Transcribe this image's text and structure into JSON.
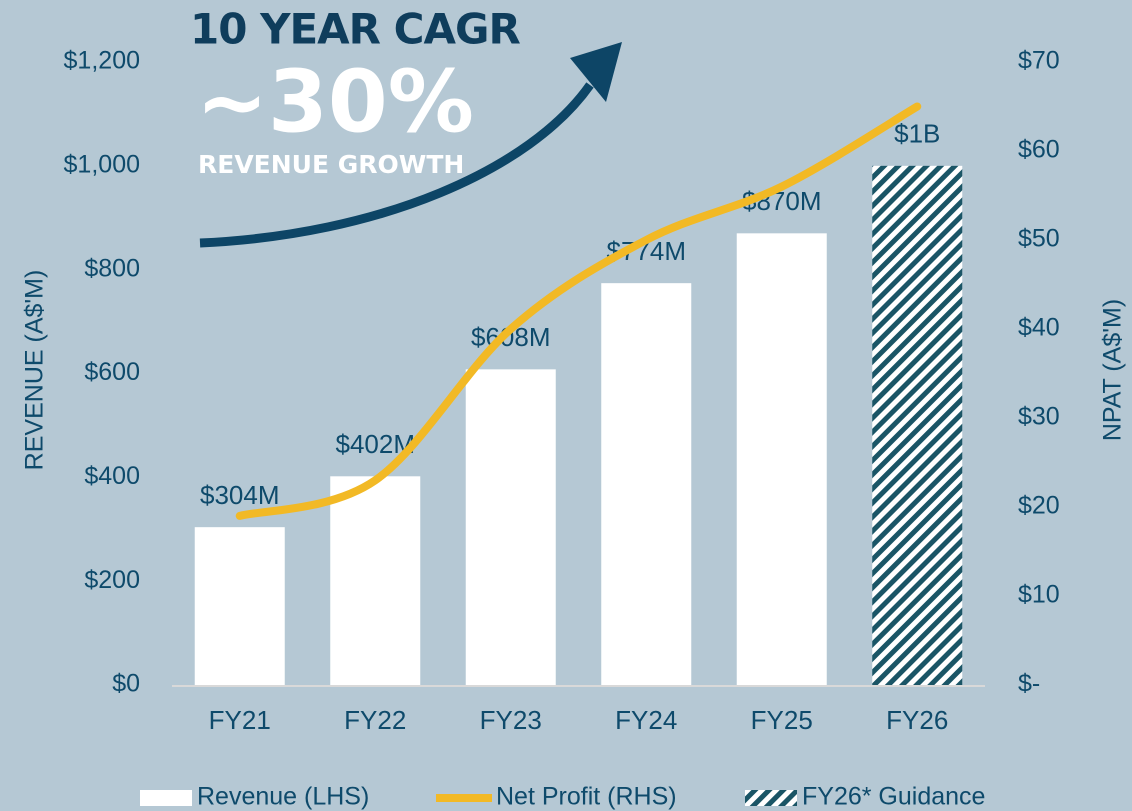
{
  "chart_data": {
    "type": "bar",
    "annotations": [
      "10 YEAR CAGR",
      "~30%",
      "REVENUE GROWTH"
    ],
    "ylabel": "REVENUE (A$'M)",
    "y2label": "NPAT (A$'M)",
    "categories": [
      "FY21",
      "FY22",
      "FY23",
      "FY24",
      "FY25",
      "FY26"
    ],
    "series": [
      {
        "name": "Revenue (LHS)",
        "type": "bar",
        "color": "#ffffff",
        "values": [
          304,
          402,
          608,
          774,
          870,
          null
        ],
        "value_labels": [
          "$304M",
          "$402M",
          "$608M",
          "$774M",
          "$870M",
          null
        ]
      },
      {
        "name": "Net Profit (RHS)",
        "type": "line",
        "axis": "y2",
        "color": "#f2b925",
        "values": [
          19,
          23,
          40,
          50,
          56,
          65
        ]
      },
      {
        "name": "FY26* Guidance",
        "type": "bar",
        "pattern": "hatch",
        "color": "#1a5566",
        "values": [
          null,
          null,
          null,
          null,
          null,
          1000
        ],
        "value_labels": [
          null,
          null,
          null,
          null,
          null,
          "$1B"
        ]
      }
    ],
    "ylim": [
      0,
      1200
    ],
    "yticks": [
      {
        "value": 0,
        "label": "$0"
      },
      {
        "value": 200,
        "label": "$200"
      },
      {
        "value": 400,
        "label": "$400"
      },
      {
        "value": 600,
        "label": "$600"
      },
      {
        "value": 800,
        "label": "$800"
      },
      {
        "value": 1000,
        "label": "$1,000"
      },
      {
        "value": 1200,
        "label": "$1,200"
      }
    ],
    "y2lim": [
      0,
      70
    ],
    "y2ticks": [
      {
        "value": 0,
        "label": "$-"
      },
      {
        "value": 10,
        "label": "$10"
      },
      {
        "value": 20,
        "label": "$20"
      },
      {
        "value": 30,
        "label": "$30"
      },
      {
        "value": 40,
        "label": "$40"
      },
      {
        "value": 50,
        "label": "$50"
      },
      {
        "value": 60,
        "label": "$60"
      },
      {
        "value": 70,
        "label": "$70"
      }
    ],
    "grid": false,
    "legend": "bottom"
  }
}
